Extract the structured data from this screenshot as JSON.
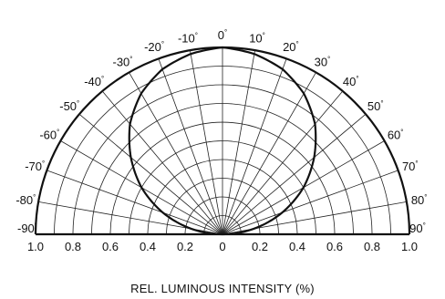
{
  "chart_data": {
    "type": "polar-half",
    "xlabel": "REL. LUMINOUS INTENSITY (%)",
    "angle_ticks": [
      -90,
      -80,
      -70,
      -60,
      -50,
      -40,
      -30,
      -20,
      -10,
      0,
      10,
      20,
      30,
      40,
      50,
      60,
      70,
      80,
      90
    ],
    "angle_labels": [
      "-90",
      "-80",
      "-70",
      "-60",
      "-50",
      "-40",
      "-30",
      "-20",
      "-10",
      "0",
      "10",
      "20",
      "30",
      "40",
      "50",
      "60",
      "70",
      "80",
      "90"
    ],
    "degree_symbol": "°",
    "x_ticks": [
      {
        "value": -1.0,
        "label": "1.0"
      },
      {
        "value": -0.8,
        "label": "0.8"
      },
      {
        "value": -0.6,
        "label": "0.6"
      },
      {
        "value": -0.4,
        "label": "0.4"
      },
      {
        "value": -0.2,
        "label": "0.2"
      },
      {
        "value": 0.0,
        "label": "0"
      },
      {
        "value": 0.2,
        "label": "0.2"
      },
      {
        "value": 0.4,
        "label": "0.4"
      },
      {
        "value": 0.6,
        "label": "0.6"
      },
      {
        "value": 0.8,
        "label": "0.8"
      },
      {
        "value": 1.0,
        "label": "1.0"
      }
    ],
    "radial_rings": [
      0.1,
      0.2,
      0.3,
      0.4,
      0.5,
      0.6,
      0.7,
      0.8,
      0.9,
      1.0
    ],
    "radial_range": [
      0,
      1.0
    ],
    "series": [
      {
        "angles_deg": [
          -90,
          -80,
          -70,
          -60,
          -50,
          -40,
          -30,
          -20,
          -10,
          0,
          10,
          20,
          30,
          40,
          50,
          60,
          70,
          80,
          90
        ],
        "values": [
          0.0,
          0.17,
          0.34,
          0.5,
          0.64,
          0.77,
          0.87,
          0.94,
          0.98,
          1.0,
          0.98,
          0.94,
          0.87,
          0.77,
          0.64,
          0.5,
          0.34,
          0.17,
          0.0
        ]
      }
    ]
  }
}
